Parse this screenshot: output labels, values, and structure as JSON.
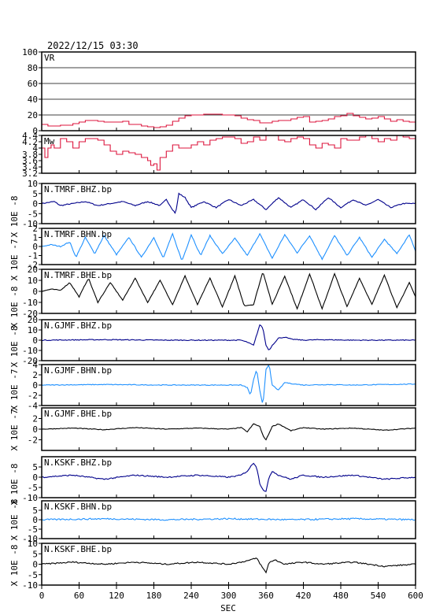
{
  "title": "2022/12/15  03:30",
  "xaxis": {
    "label": "SEC",
    "ticks": [
      0,
      60,
      120,
      180,
      240,
      300,
      360,
      420,
      480,
      540,
      600
    ],
    "range": [
      0,
      600
    ]
  },
  "chart_data": [
    {
      "type": "line",
      "key": "vr",
      "label": "VR",
      "ylim": [
        0,
        100
      ],
      "yticks": [
        0,
        20,
        40,
        60,
        80,
        100
      ],
      "grid": true,
      "color": "#dc143c",
      "x": [
        0,
        10,
        20,
        30,
        40,
        50,
        60,
        70,
        80,
        90,
        100,
        110,
        120,
        130,
        140,
        150,
        160,
        170,
        180,
        190,
        200,
        210,
        220,
        230,
        240,
        250,
        260,
        270,
        280,
        290,
        300,
        310,
        320,
        330,
        340,
        350,
        360,
        370,
        380,
        390,
        400,
        410,
        420,
        430,
        440,
        450,
        460,
        470,
        480,
        490,
        500,
        510,
        520,
        530,
        540,
        550,
        560,
        570,
        580,
        590,
        600
      ],
      "y": [
        8,
        6,
        6,
        7,
        7,
        9,
        11,
        13,
        13,
        12,
        11,
        11,
        11,
        12,
        8,
        8,
        6,
        5,
        4,
        5,
        7,
        12,
        16,
        19,
        20,
        20,
        21,
        21,
        21,
        20,
        20,
        19,
        16,
        14,
        13,
        10,
        10,
        12,
        13,
        13,
        15,
        17,
        18,
        11,
        12,
        13,
        15,
        18,
        19,
        22,
        19,
        17,
        15,
        16,
        18,
        15,
        12,
        14,
        12,
        11,
        10
      ]
    },
    {
      "type": "line",
      "key": "mw",
      "label": "Mw",
      "ylim": [
        3.2,
        4.4
      ],
      "yticks": [
        3.2,
        3.4,
        3.6,
        3.8,
        4.0,
        4.2,
        4.4
      ],
      "tick_labels": [
        "3.2",
        "3.4",
        "3.6",
        "3.8",
        "4",
        "4.2",
        "4.4"
      ],
      "grid": false,
      "color": "#dc143c",
      "x": [
        0,
        5,
        10,
        15,
        20,
        30,
        40,
        50,
        60,
        70,
        80,
        90,
        100,
        110,
        120,
        130,
        140,
        150,
        160,
        170,
        175,
        180,
        185,
        190,
        200,
        210,
        220,
        230,
        240,
        250,
        260,
        270,
        280,
        290,
        300,
        310,
        320,
        330,
        340,
        350,
        360,
        370,
        380,
        390,
        400,
        410,
        420,
        430,
        440,
        450,
        460,
        470,
        480,
        490,
        500,
        510,
        520,
        530,
        540,
        550,
        560,
        570,
        580,
        590,
        600
      ],
      "y": [
        4.0,
        3.7,
        4.0,
        4.1,
        4.0,
        4.3,
        4.2,
        4.0,
        4.2,
        4.3,
        4.3,
        4.25,
        4.1,
        3.9,
        3.8,
        3.9,
        3.85,
        3.8,
        3.7,
        3.6,
        3.45,
        3.5,
        3.3,
        3.7,
        3.9,
        4.1,
        4.0,
        4.0,
        4.1,
        4.2,
        4.1,
        4.25,
        4.3,
        4.35,
        4.35,
        4.3,
        4.15,
        4.2,
        4.35,
        4.25,
        4.4,
        4.4,
        4.25,
        4.2,
        4.3,
        4.35,
        4.3,
        4.1,
        4.0,
        4.15,
        4.1,
        4.0,
        4.3,
        4.25,
        4.25,
        4.35,
        4.4,
        4.3,
        4.2,
        4.3,
        4.25,
        4.4,
        4.35,
        4.3,
        4.3
      ]
    },
    {
      "type": "line",
      "key": "tmr_z",
      "label": "N.TMRF.BHZ.bp",
      "unit": "X 10E -8",
      "ylim": [
        -10,
        10
      ],
      "yticks": [
        -10,
        -5,
        0,
        5,
        10
      ],
      "color": "#00008b",
      "noise": 0.25,
      "x": [
        0,
        20,
        30,
        50,
        70,
        90,
        110,
        130,
        150,
        170,
        190,
        200,
        210,
        215,
        220,
        230,
        240,
        260,
        280,
        300,
        320,
        340,
        360,
        380,
        400,
        420,
        440,
        460,
        480,
        500,
        520,
        540,
        560,
        580,
        600
      ],
      "y": [
        0,
        1,
        -1,
        0,
        1,
        -1,
        0,
        1,
        -1,
        1,
        -1,
        2,
        -3,
        -5,
        5,
        3,
        -2,
        1,
        -2,
        2,
        -1,
        2,
        -3,
        3,
        -2,
        2,
        -3,
        3,
        -2,
        2,
        -1,
        2,
        -2,
        0,
        0
      ]
    },
    {
      "type": "line",
      "key": "tmr_n",
      "label": "N.TMRF.BHN.bp",
      "unit": "X 10E -7",
      "ylim": [
        -2,
        2
      ],
      "yticks": [
        -2,
        -1,
        0,
        1,
        2
      ],
      "color": "#1e90ff",
      "noise": 0.05,
      "x": [
        0,
        15,
        30,
        45,
        55,
        70,
        85,
        100,
        120,
        140,
        160,
        180,
        195,
        210,
        225,
        240,
        255,
        270,
        290,
        310,
        330,
        350,
        370,
        390,
        410,
        430,
        450,
        470,
        490,
        510,
        530,
        550,
        570,
        590,
        600
      ],
      "y": [
        0,
        0.2,
        0,
        0.5,
        -1.2,
        1.0,
        -0.8,
        1.2,
        -0.9,
        1.0,
        -1.2,
        1.0,
        -1.3,
        1.4,
        -1.6,
        1.3,
        -1.0,
        1.2,
        -0.8,
        0.9,
        -1.0,
        1.4,
        -1.3,
        1.3,
        -0.7,
        1.2,
        -1.4,
        1.2,
        -1.0,
        1.0,
        -1.2,
        0.8,
        -0.8,
        1.3,
        -0.5
      ]
    },
    {
      "type": "line",
      "key": "tmr_e",
      "label": "N.TMRF.BHE.bp",
      "unit": "X 10E -8",
      "ylim": [
        -20,
        20
      ],
      "yticks": [
        -20,
        -10,
        0,
        10,
        20
      ],
      "color": "#000000",
      "noise": 0.3,
      "x": [
        0,
        15,
        30,
        45,
        60,
        75,
        90,
        110,
        130,
        150,
        170,
        190,
        210,
        230,
        250,
        270,
        290,
        310,
        325,
        340,
        355,
        370,
        390,
        410,
        430,
        450,
        470,
        490,
        510,
        530,
        550,
        570,
        590,
        600
      ],
      "y": [
        0,
        2,
        1,
        8,
        -5,
        12,
        -10,
        8,
        -8,
        12,
        -10,
        10,
        -12,
        14,
        -12,
        12,
        -14,
        14,
        -13,
        -12,
        18,
        -12,
        14,
        -16,
        16,
        -16,
        16,
        -14,
        12,
        -12,
        15,
        -15,
        8,
        -5
      ]
    },
    {
      "type": "line",
      "key": "gjm_z",
      "label": "N.GJMF.BHZ.bp",
      "unit": "X 10E -8",
      "ylim": [
        -20,
        20
      ],
      "yticks": [
        -20,
        -10,
        0,
        10,
        20
      ],
      "color": "#00008b",
      "noise": 0.4,
      "x": [
        0,
        100,
        200,
        300,
        320,
        330,
        340,
        345,
        350,
        355,
        360,
        365,
        370,
        380,
        390,
        400,
        420,
        450,
        500,
        600
      ],
      "y": [
        0,
        0.5,
        0,
        0,
        0,
        -2,
        -5,
        5,
        15,
        12,
        -5,
        -10,
        -5,
        2,
        3,
        1,
        0,
        0.5,
        0,
        0
      ]
    },
    {
      "type": "line",
      "key": "gjm_n",
      "label": "N.GJMF.BHN.bp",
      "unit": "X 10E -7",
      "ylim": [
        -4,
        4
      ],
      "yticks": [
        -4,
        -2,
        0,
        2,
        4
      ],
      "color": "#1e90ff",
      "noise": 0.07,
      "x": [
        0,
        100,
        200,
        300,
        320,
        330,
        335,
        340,
        345,
        350,
        355,
        360,
        365,
        370,
        380,
        390,
        400,
        420,
        460,
        500,
        600
      ],
      "y": [
        0,
        0.1,
        0,
        0,
        0,
        -0.5,
        -2,
        1,
        3,
        -1,
        -4,
        3,
        4,
        0,
        -1,
        0.5,
        0.3,
        0,
        0.1,
        0,
        0.2
      ]
    },
    {
      "type": "line",
      "key": "gjm_e",
      "label": "N.GJMF.BHE.bp",
      "unit": "X 10E -7",
      "ylim": [
        -4,
        4
      ],
      "yticks": [
        -2,
        0,
        2
      ],
      "color": "#000000",
      "noise": 0.06,
      "x": [
        0,
        50,
        100,
        150,
        200,
        250,
        300,
        320,
        330,
        340,
        350,
        355,
        360,
        370,
        380,
        400,
        420,
        450,
        500,
        550,
        600
      ],
      "y": [
        0,
        0.2,
        -0.1,
        0.3,
        0,
        0.2,
        0,
        0.3,
        -0.5,
        1.0,
        0.5,
        -1.2,
        -2.0,
        0.5,
        1.0,
        -0.3,
        0.3,
        0,
        0.2,
        -0.2,
        0.2
      ]
    },
    {
      "type": "line",
      "key": "ksk_z",
      "label": "N.KSKF.BHZ.bp",
      "unit": "X 10E -8",
      "ylim": [
        -10,
        10
      ],
      "yticks": [
        -10,
        -5,
        0,
        5
      ],
      "color": "#00008b",
      "noise": 0.3,
      "x": [
        0,
        50,
        100,
        150,
        200,
        250,
        300,
        320,
        330,
        340,
        345,
        350,
        355,
        360,
        365,
        370,
        380,
        400,
        420,
        450,
        500,
        550,
        600
      ],
      "y": [
        0,
        1,
        -1,
        1,
        0,
        1,
        0,
        1,
        3,
        7,
        5,
        -3,
        -6,
        -7,
        0,
        3,
        1,
        -1,
        1,
        0,
        1,
        -1,
        0
      ]
    },
    {
      "type": "line",
      "key": "ksk_n",
      "label": "N.KSKF.BHN.bp",
      "unit": "X 10E -8",
      "ylim": [
        -10,
        10
      ],
      "yticks": [
        -10,
        -5,
        0,
        5
      ],
      "color": "#1e90ff",
      "noise": 0.4,
      "x": [
        0,
        100,
        200,
        300,
        400,
        500,
        600
      ],
      "y": [
        0,
        0.5,
        0,
        0.5,
        0,
        0.5,
        0
      ]
    },
    {
      "type": "line",
      "key": "ksk_e",
      "label": "N.KSKF.BHE.bp",
      "unit": "X 10E -8",
      "ylim": [
        -10,
        10
      ],
      "yticks": [
        -10,
        -5,
        0,
        5,
        10
      ],
      "color": "#000000",
      "noise": 0.3,
      "x": [
        0,
        50,
        100,
        150,
        200,
        250,
        300,
        320,
        335,
        345,
        355,
        360,
        365,
        375,
        390,
        420,
        450,
        500,
        550,
        600
      ],
      "y": [
        0,
        1,
        0,
        1,
        0,
        1,
        0,
        1,
        2,
        3,
        -2,
        -4,
        1,
        2,
        0,
        1,
        0,
        1,
        -1,
        0
      ]
    }
  ]
}
